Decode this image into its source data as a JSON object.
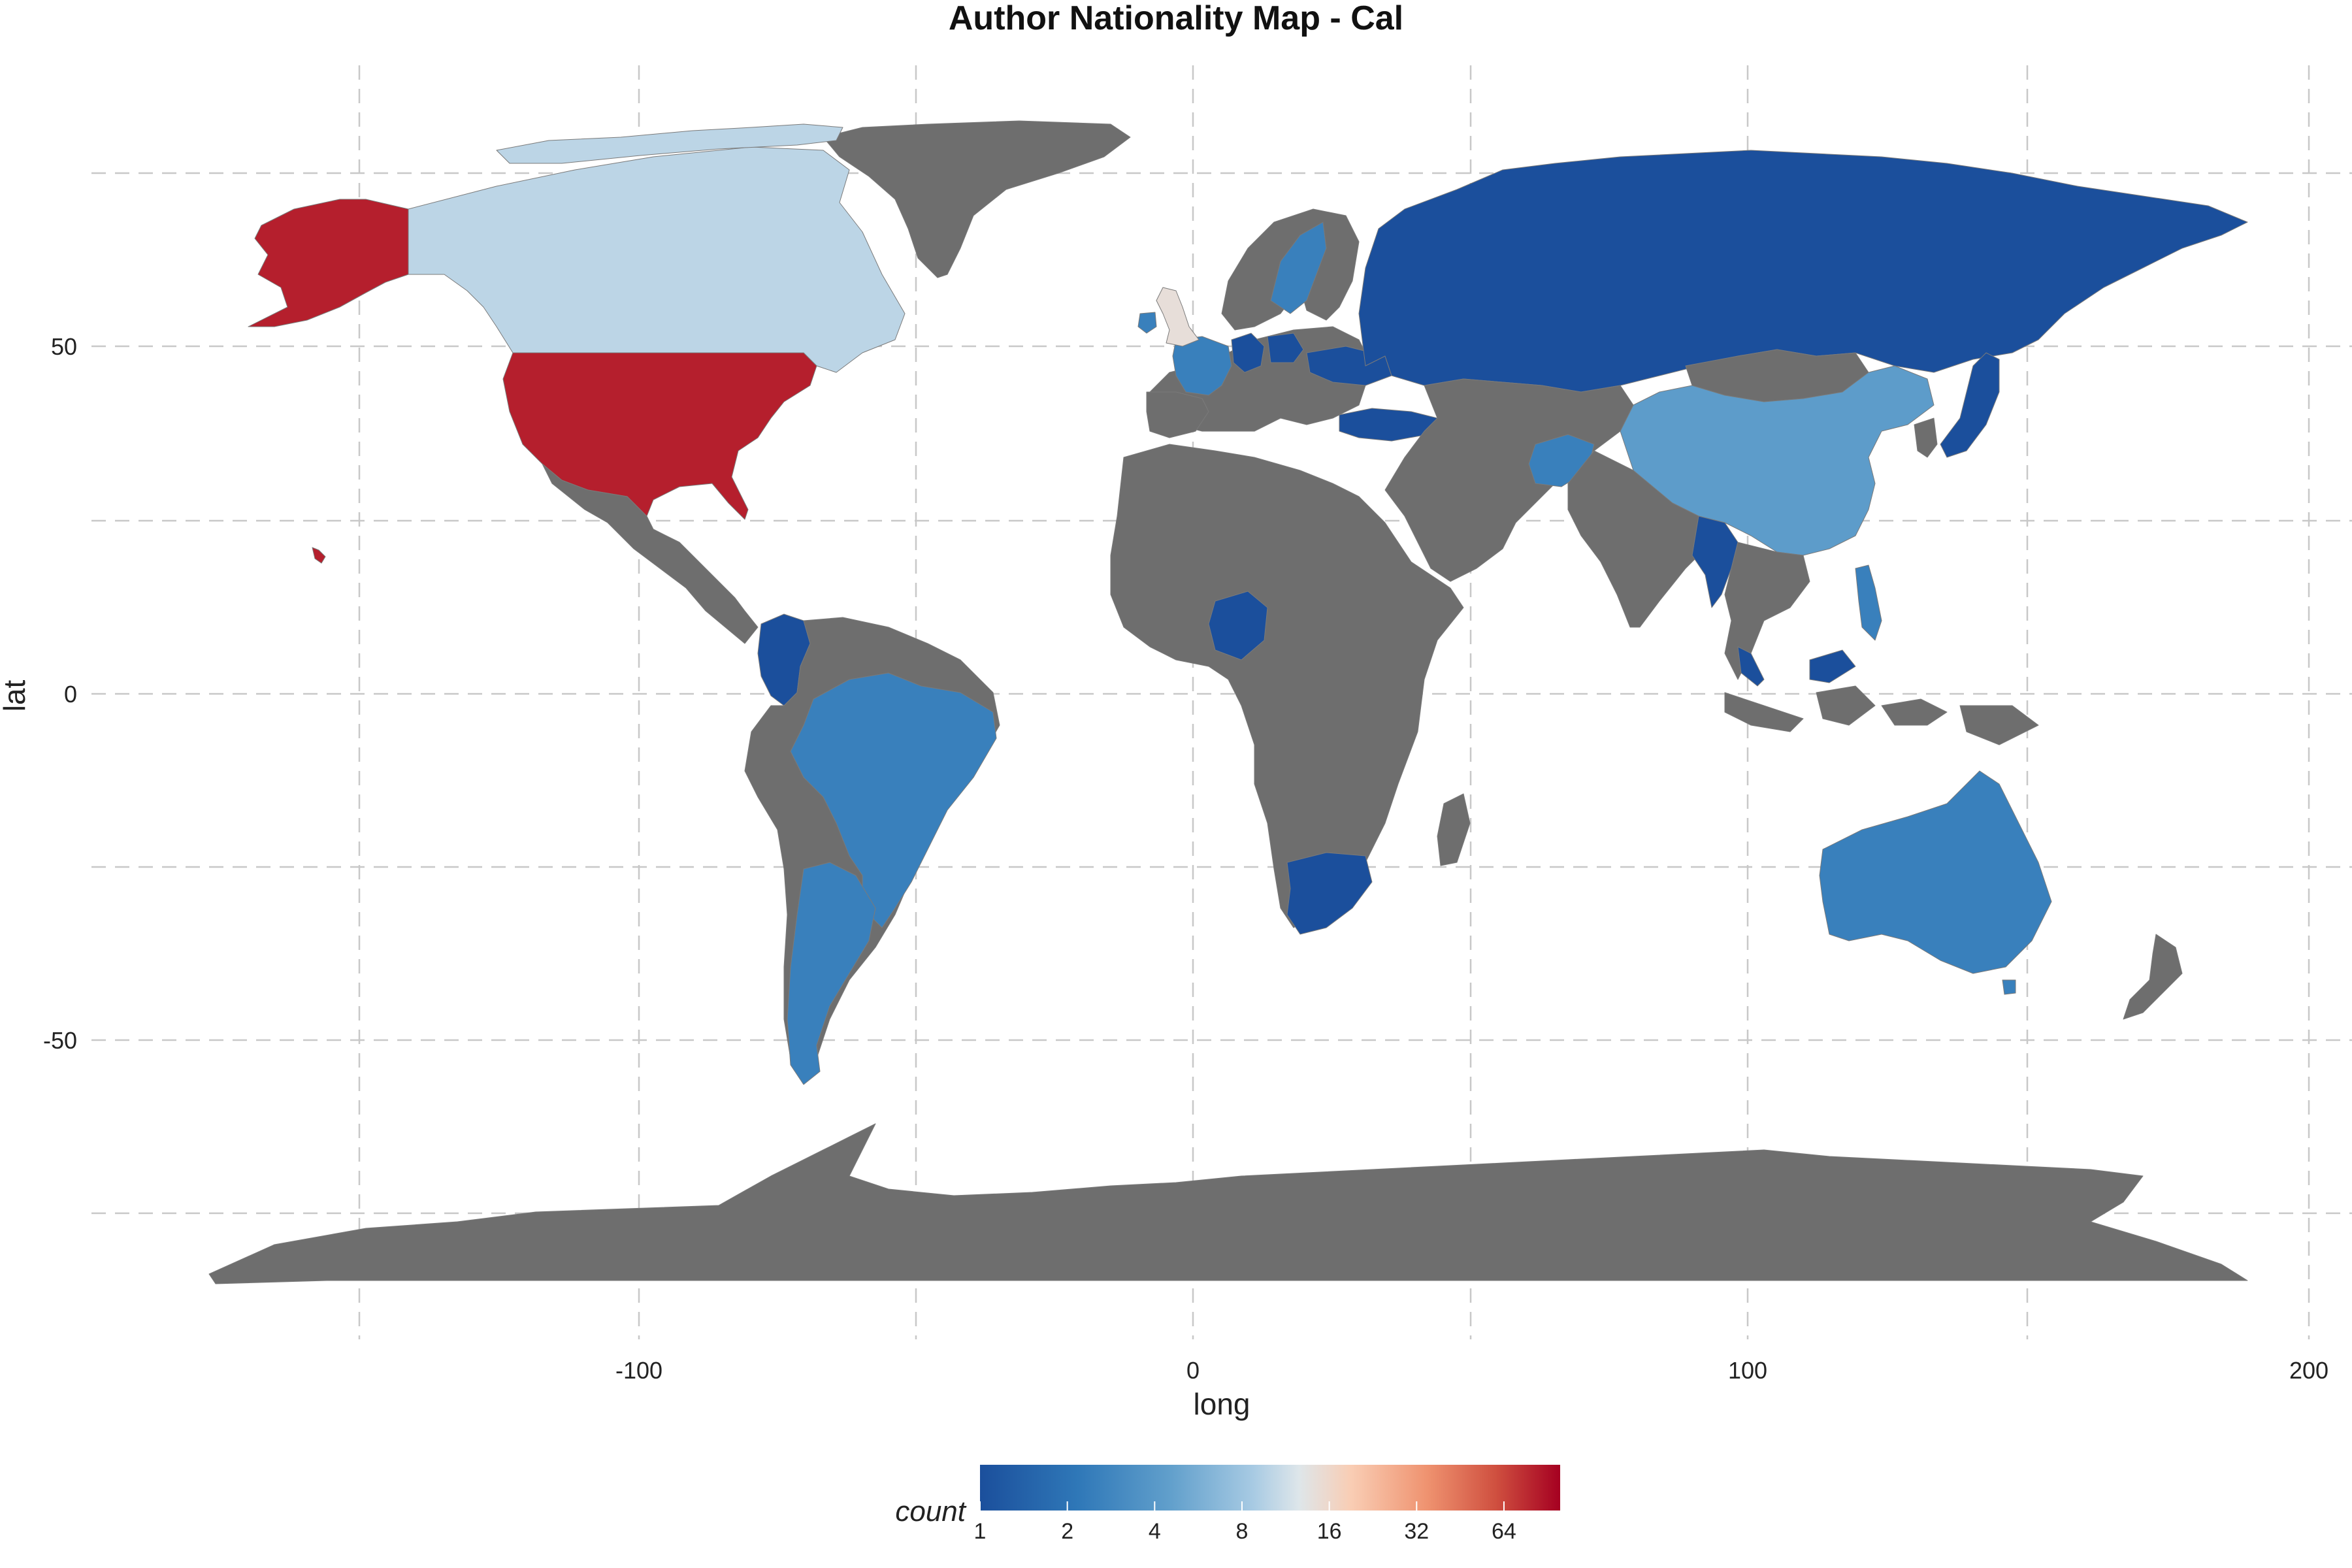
{
  "chart_data": {
    "type": "choropleth",
    "title": "Author Nationality Map - Cal",
    "xlabel": "long",
    "ylabel": "lat",
    "x_ticks": [
      -100,
      0,
      100,
      200
    ],
    "y_ticks": [
      50,
      0,
      -50
    ],
    "xlim": [
      -200,
      210
    ],
    "ylim": [
      -90,
      90
    ],
    "grid": true,
    "legend": {
      "title": "count",
      "placement": "bottom",
      "scale": "log2",
      "ticks": [
        "1",
        "2",
        "4",
        "8",
        "16",
        "32",
        "64"
      ],
      "range": [
        1,
        100
      ],
      "palette": [
        "#1b4f9c",
        "#2f78b8",
        "#62a0cc",
        "#a7cae3",
        "#dee6ea",
        "#f9cdb4",
        "#ef9370",
        "#cf4f3f",
        "#a50021"
      ]
    },
    "no_data_color": "#6e6e6e",
    "countries": [
      {
        "name": "United States",
        "count": 80
      },
      {
        "name": "Canada",
        "count": 7
      },
      {
        "name": "United Kingdom",
        "count": 12
      },
      {
        "name": "Ireland",
        "count": 2
      },
      {
        "name": "France",
        "count": 2
      },
      {
        "name": "Sweden",
        "count": 2
      },
      {
        "name": "Germany",
        "count": 1
      },
      {
        "name": "Poland",
        "count": 1
      },
      {
        "name": "Ukraine",
        "count": 1
      },
      {
        "name": "Turkey",
        "count": 1
      },
      {
        "name": "Russia",
        "count": 1
      },
      {
        "name": "Japan",
        "count": 1
      },
      {
        "name": "China",
        "count": 3
      },
      {
        "name": "Afghanistan",
        "count": 2
      },
      {
        "name": "Myanmar",
        "count": 1
      },
      {
        "name": "Philippines",
        "count": 2
      },
      {
        "name": "Malaysia",
        "count": 1
      },
      {
        "name": "Nigeria",
        "count": 1
      },
      {
        "name": "South Africa",
        "count": 1
      },
      {
        "name": "Colombia",
        "count": 1
      },
      {
        "name": "Brazil",
        "count": 2
      },
      {
        "name": "Argentina",
        "count": 2
      },
      {
        "name": "Australia",
        "count": 2
      }
    ]
  }
}
